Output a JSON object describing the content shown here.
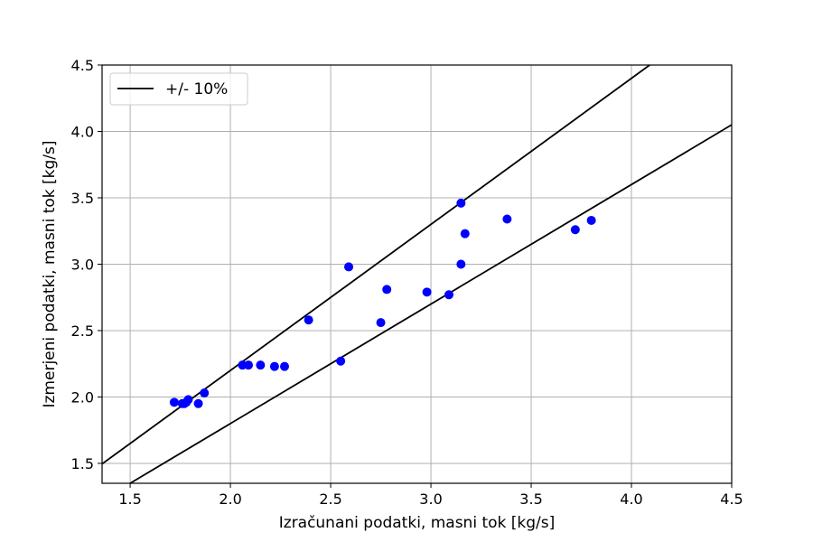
{
  "chart_data": {
    "type": "scatter",
    "xlabel": "Izračunani podatki, masni tok [kg/s]",
    "ylabel": "Izmerjeni podatki, masni tok [kg/s]",
    "xlim": [
      1.36,
      4.5
    ],
    "ylim": [
      1.35,
      4.5
    ],
    "xticks": [
      "1.5",
      "2.0",
      "2.5",
      "3.0",
      "3.5",
      "4.0",
      "4.5"
    ],
    "yticks": [
      "1.5",
      "2.0",
      "2.5",
      "3.0",
      "3.5",
      "4.0",
      "4.5"
    ],
    "grid": true,
    "legend_position": "top-left",
    "legend": [
      {
        "label": "+/- 10%",
        "color": "#000000",
        "marker": "line"
      }
    ],
    "lines": [
      {
        "name": "+/- 10%",
        "slope": 1.1,
        "color": "#000000"
      },
      {
        "name": "+/- 10%",
        "slope": 0.9,
        "color": "#000000"
      }
    ],
    "series": [
      {
        "color": "#0000ff",
        "points": [
          {
            "x": 1.72,
            "y": 1.96
          },
          {
            "x": 1.76,
            "y": 1.95
          },
          {
            "x": 1.77,
            "y": 1.95
          },
          {
            "x": 1.78,
            "y": 1.96
          },
          {
            "x": 1.79,
            "y": 1.98
          },
          {
            "x": 1.84,
            "y": 1.95
          },
          {
            "x": 1.87,
            "y": 2.03
          },
          {
            "x": 2.06,
            "y": 2.24
          },
          {
            "x": 2.09,
            "y": 2.24
          },
          {
            "x": 2.15,
            "y": 2.24
          },
          {
            "x": 2.22,
            "y": 2.23
          },
          {
            "x": 2.27,
            "y": 2.23
          },
          {
            "x": 2.39,
            "y": 2.58
          },
          {
            "x": 2.55,
            "y": 2.27
          },
          {
            "x": 2.59,
            "y": 2.98
          },
          {
            "x": 2.75,
            "y": 2.56
          },
          {
            "x": 2.78,
            "y": 2.81
          },
          {
            "x": 2.98,
            "y": 2.79
          },
          {
            "x": 3.09,
            "y": 2.77
          },
          {
            "x": 3.15,
            "y": 3.46
          },
          {
            "x": 3.15,
            "y": 3.0
          },
          {
            "x": 3.17,
            "y": 3.23
          },
          {
            "x": 3.38,
            "y": 3.34
          },
          {
            "x": 3.72,
            "y": 3.26
          },
          {
            "x": 3.8,
            "y": 3.33
          }
        ]
      }
    ]
  }
}
